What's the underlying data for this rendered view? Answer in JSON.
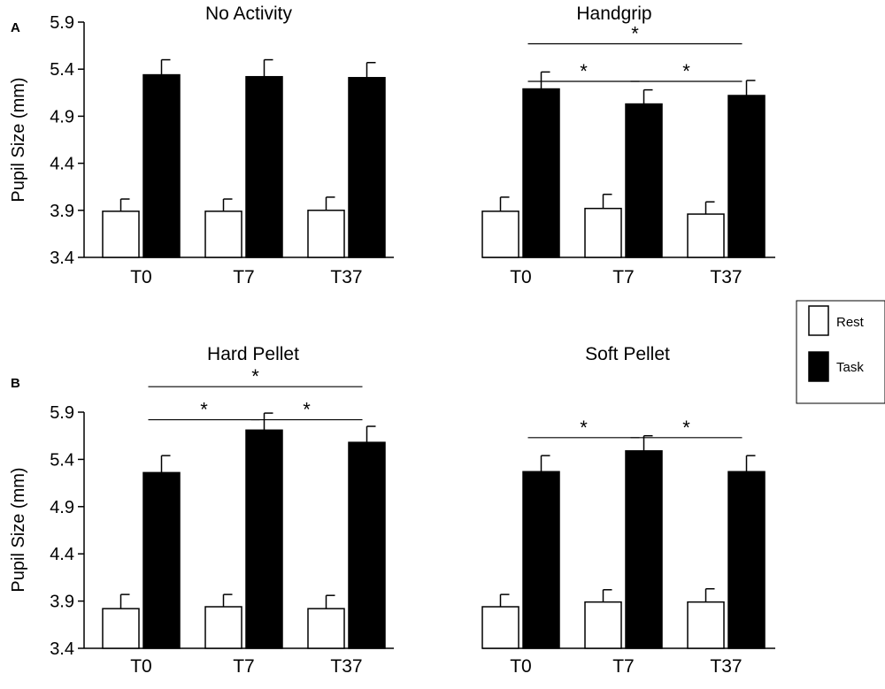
{
  "figure": {
    "colors": {
      "rest": "#ffffff",
      "task": "#000000",
      "stroke": "#000000"
    },
    "legend": {
      "entries": [
        {
          "label": "Rest",
          "color": "#ffffff"
        },
        {
          "label": "Task",
          "color": "#000000"
        }
      ]
    }
  },
  "chart_data": [
    {
      "type": "bar",
      "panel": "A",
      "title": "No Activity",
      "ylabel": "Pupil Size (mm)",
      "ylim": [
        3.4,
        5.9
      ],
      "yticks": [
        "3.4",
        "3.9",
        "4.4",
        "4.9",
        "5.4",
        "5.9"
      ],
      "categories": [
        "T0",
        "T7",
        "T37"
      ],
      "series": [
        {
          "name": "Rest",
          "values": [
            3.89,
            3.89,
            3.9
          ],
          "errors": [
            0.13,
            0.13,
            0.14
          ]
        },
        {
          "name": "Task",
          "values": [
            5.34,
            5.32,
            5.31
          ],
          "errors": [
            0.16,
            0.18,
            0.16
          ]
        }
      ],
      "significance": []
    },
    {
      "type": "bar",
      "panel": "",
      "title": "Handgrip",
      "ylabel": "",
      "ylim": [
        3.4,
        5.9
      ],
      "categories": [
        "T0",
        "T7",
        "T37"
      ],
      "series": [
        {
          "name": "Rest",
          "values": [
            3.89,
            3.92,
            3.86
          ],
          "errors": [
            0.15,
            0.15,
            0.13
          ]
        },
        {
          "name": "Task",
          "values": [
            5.19,
            5.03,
            5.12
          ],
          "errors": [
            0.18,
            0.15,
            0.16
          ]
        }
      ],
      "significance": [
        {
          "from": "T0",
          "to": "T37",
          "label": "*",
          "level": 5.67
        },
        {
          "from": "T0",
          "to": "T7",
          "label": "*",
          "level": 5.27
        },
        {
          "from": "T7",
          "to": "T37",
          "label": "*",
          "level": 5.27
        }
      ]
    },
    {
      "type": "bar",
      "panel": "B",
      "title": "Hard Pellet",
      "ylabel": "Pupil Size (mm)",
      "ylim": [
        3.4,
        5.9
      ],
      "yticks": [
        "3.4",
        "3.9",
        "4.4",
        "4.9",
        "5.4",
        "5.9"
      ],
      "categories": [
        "T0",
        "T7",
        "T37"
      ],
      "series": [
        {
          "name": "Rest",
          "values": [
            3.82,
            3.84,
            3.82
          ],
          "errors": [
            0.15,
            0.13,
            0.14
          ]
        },
        {
          "name": "Task",
          "values": [
            5.26,
            5.71,
            5.58
          ],
          "errors": [
            0.18,
            0.18,
            0.17
          ]
        }
      ],
      "significance": [
        {
          "from": "T0",
          "to": "T37",
          "label": "*",
          "level": 6.17
        },
        {
          "from": "T0",
          "to": "T7",
          "label": "*",
          "level": 5.82
        },
        {
          "from": "T7",
          "to": "T37",
          "label": "*",
          "level": 5.82
        }
      ]
    },
    {
      "type": "bar",
      "panel": "",
      "title": "Soft Pellet",
      "ylabel": "",
      "ylim": [
        3.4,
        5.9
      ],
      "categories": [
        "T0",
        "T7",
        "T37"
      ],
      "series": [
        {
          "name": "Rest",
          "values": [
            3.84,
            3.89,
            3.89
          ],
          "errors": [
            0.13,
            0.13,
            0.14
          ]
        },
        {
          "name": "Task",
          "values": [
            5.27,
            5.49,
            5.27
          ],
          "errors": [
            0.17,
            0.16,
            0.17
          ]
        }
      ],
      "significance": [
        {
          "from": "T0",
          "to": "T7",
          "label": "*",
          "level": 5.63
        },
        {
          "from": "T7",
          "to": "T37",
          "label": "*",
          "level": 5.63
        }
      ]
    }
  ]
}
